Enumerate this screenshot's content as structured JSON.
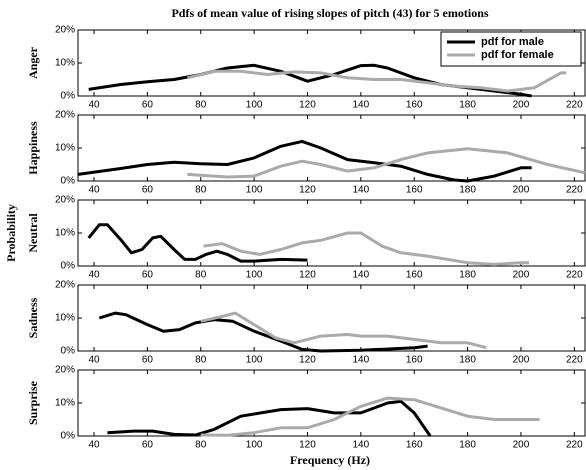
{
  "figure": {
    "title": "Pdfs of mean value of rising slopes of pitch (43) for 5 emotions",
    "xlabel": "Frequency (Hz)",
    "ylabel": "Probability"
  },
  "chart_data": [
    {
      "type": "line",
      "ylabel": "Anger",
      "xlim": [
        34,
        224
      ],
      "ylim": [
        0,
        20
      ],
      "xticks": [
        40,
        60,
        80,
        100,
        120,
        140,
        160,
        180,
        200,
        220
      ],
      "yticks": [
        {
          "value": 0,
          "label": "0%"
        },
        {
          "value": 10,
          "label": "10%"
        },
        {
          "value": 20,
          "label": "20%"
        }
      ],
      "legend": "upper right",
      "series": [
        {
          "name": "pdf for male",
          "color": "#000000",
          "x": [
            38,
            50,
            60,
            70,
            80,
            90,
            100,
            110,
            120,
            130,
            140,
            145,
            150,
            160,
            170,
            180,
            190,
            200,
            204
          ],
          "values": [
            2,
            3.5,
            4.3,
            5,
            6.5,
            8.5,
            9.3,
            7.5,
            4.5,
            6.5,
            9.2,
            9.3,
            8.5,
            5.5,
            3.5,
            2.5,
            1.5,
            0.5,
            0
          ]
        },
        {
          "name": "pdf for female",
          "color": "#aaaaaa",
          "x": [
            75,
            85,
            95,
            105,
            115,
            125,
            135,
            145,
            155,
            165,
            175,
            185,
            195,
            205,
            215,
            217
          ],
          "values": [
            5.5,
            7.5,
            7.5,
            6.5,
            7.3,
            7,
            5.5,
            5,
            5,
            4,
            3,
            2.5,
            1.5,
            2.5,
            7,
            7
          ]
        }
      ]
    },
    {
      "type": "line",
      "ylabel": "Happiness",
      "xlim": [
        34,
        224
      ],
      "ylim": [
        0,
        20
      ],
      "xticks": [
        40,
        60,
        80,
        100,
        120,
        140,
        160,
        180,
        200,
        220
      ],
      "yticks": [
        {
          "value": 0,
          "label": "0%"
        },
        {
          "value": 10,
          "label": "10%"
        },
        {
          "value": 20,
          "label": "20%"
        }
      ],
      "series": [
        {
          "color": "#000000",
          "x": [
            34,
            50,
            60,
            70,
            80,
            90,
            100,
            110,
            118,
            125,
            135,
            145,
            155,
            165,
            175,
            180,
            190,
            200,
            204
          ],
          "values": [
            2,
            3.8,
            5,
            5.7,
            5.2,
            5,
            7,
            10.5,
            12,
            10,
            6.5,
            5.5,
            4.5,
            2,
            0.3,
            0,
            1.5,
            4,
            4
          ]
        },
        {
          "color": "#aaaaaa",
          "x": [
            75,
            90,
            100,
            110,
            118,
            125,
            135,
            145,
            155,
            165,
            180,
            195,
            210,
            224
          ],
          "values": [
            2,
            1.2,
            1.5,
            4.5,
            6,
            5,
            3,
            4,
            6.5,
            8.5,
            9.8,
            8.5,
            5,
            2.5
          ]
        }
      ]
    },
    {
      "type": "line",
      "ylabel": "Neutral",
      "xlim": [
        34,
        224
      ],
      "ylim": [
        0,
        20
      ],
      "xticks": [
        40,
        60,
        80,
        100,
        120,
        140,
        160,
        180,
        200,
        220
      ],
      "yticks": [
        {
          "value": 0,
          "label": "0%"
        },
        {
          "value": 10,
          "label": "10%"
        },
        {
          "value": 20,
          "label": "20%"
        }
      ],
      "series": [
        {
          "color": "#000000",
          "x": [
            38,
            42,
            45,
            50,
            54,
            58,
            62,
            65,
            70,
            74,
            78,
            82,
            86,
            90,
            95,
            100,
            110,
            120
          ],
          "values": [
            8.5,
            12.5,
            12.5,
            8,
            4,
            5,
            8.5,
            9,
            5,
            2,
            2,
            3.5,
            4.5,
            3.5,
            1.5,
            1.5,
            2,
            1.8
          ]
        },
        {
          "color": "#aaaaaa",
          "x": [
            81,
            88,
            95,
            102,
            110,
            118,
            125,
            135,
            140,
            148,
            155,
            165,
            180,
            190,
            200,
            203
          ],
          "values": [
            6,
            6.8,
            4.5,
            3.5,
            5,
            7,
            7.8,
            10,
            10,
            6,
            4,
            3,
            1,
            0.5,
            1,
            1
          ]
        }
      ]
    },
    {
      "type": "line",
      "ylabel": "Sadness",
      "xlim": [
        34,
        224
      ],
      "ylim": [
        0,
        20
      ],
      "xticks": [
        40,
        60,
        80,
        100,
        120,
        140,
        160,
        180,
        200,
        220
      ],
      "yticks": [
        {
          "value": 0,
          "label": "0%"
        },
        {
          "value": 10,
          "label": "10%"
        },
        {
          "value": 20,
          "label": "20%"
        }
      ],
      "series": [
        {
          "color": "#000000",
          "x": [
            42,
            48,
            52,
            60,
            66,
            72,
            78,
            85,
            92,
            100,
            110,
            118,
            125,
            140,
            160,
            165
          ],
          "values": [
            10,
            11.5,
            11,
            8,
            6,
            6.5,
            8.5,
            9.5,
            9,
            6,
            3,
            0.5,
            0,
            0.2,
            1,
            1.5
          ]
        },
        {
          "color": "#aaaaaa",
          "x": [
            80,
            88,
            93,
            100,
            108,
            115,
            125,
            135,
            140,
            150,
            160,
            170,
            180,
            187
          ],
          "values": [
            9,
            10.5,
            11.5,
            8,
            4,
            2.5,
            4.5,
            5,
            4.5,
            4.5,
            3.5,
            2.5,
            2.5,
            1
          ]
        }
      ]
    },
    {
      "type": "line",
      "ylabel": "Surprise",
      "xlim": [
        34,
        224
      ],
      "ylim": [
        0,
        20
      ],
      "xticks": [
        40,
        60,
        80,
        100,
        120,
        140,
        160,
        180,
        200,
        220
      ],
      "yticks": [
        {
          "value": 0,
          "label": "0%"
        },
        {
          "value": 10,
          "label": "10%"
        },
        {
          "value": 20,
          "label": "20%"
        }
      ],
      "series": [
        {
          "color": "#000000",
          "x": [
            45,
            55,
            62,
            70,
            78,
            85,
            95,
            110,
            120,
            130,
            140,
            150,
            155,
            160,
            166
          ],
          "values": [
            1,
            1.5,
            1.5,
            0.5,
            0.3,
            2,
            6,
            8,
            8.3,
            7,
            7,
            10,
            10.5,
            7,
            0
          ]
        },
        {
          "color": "#aaaaaa",
          "x": [
            80,
            90,
            100,
            110,
            120,
            130,
            140,
            150,
            160,
            170,
            180,
            190,
            200,
            207
          ],
          "values": [
            0.3,
            0.2,
            1,
            2.5,
            2.5,
            5,
            9,
            11.5,
            11,
            8.5,
            6,
            5,
            5,
            5
          ]
        }
      ]
    }
  ]
}
